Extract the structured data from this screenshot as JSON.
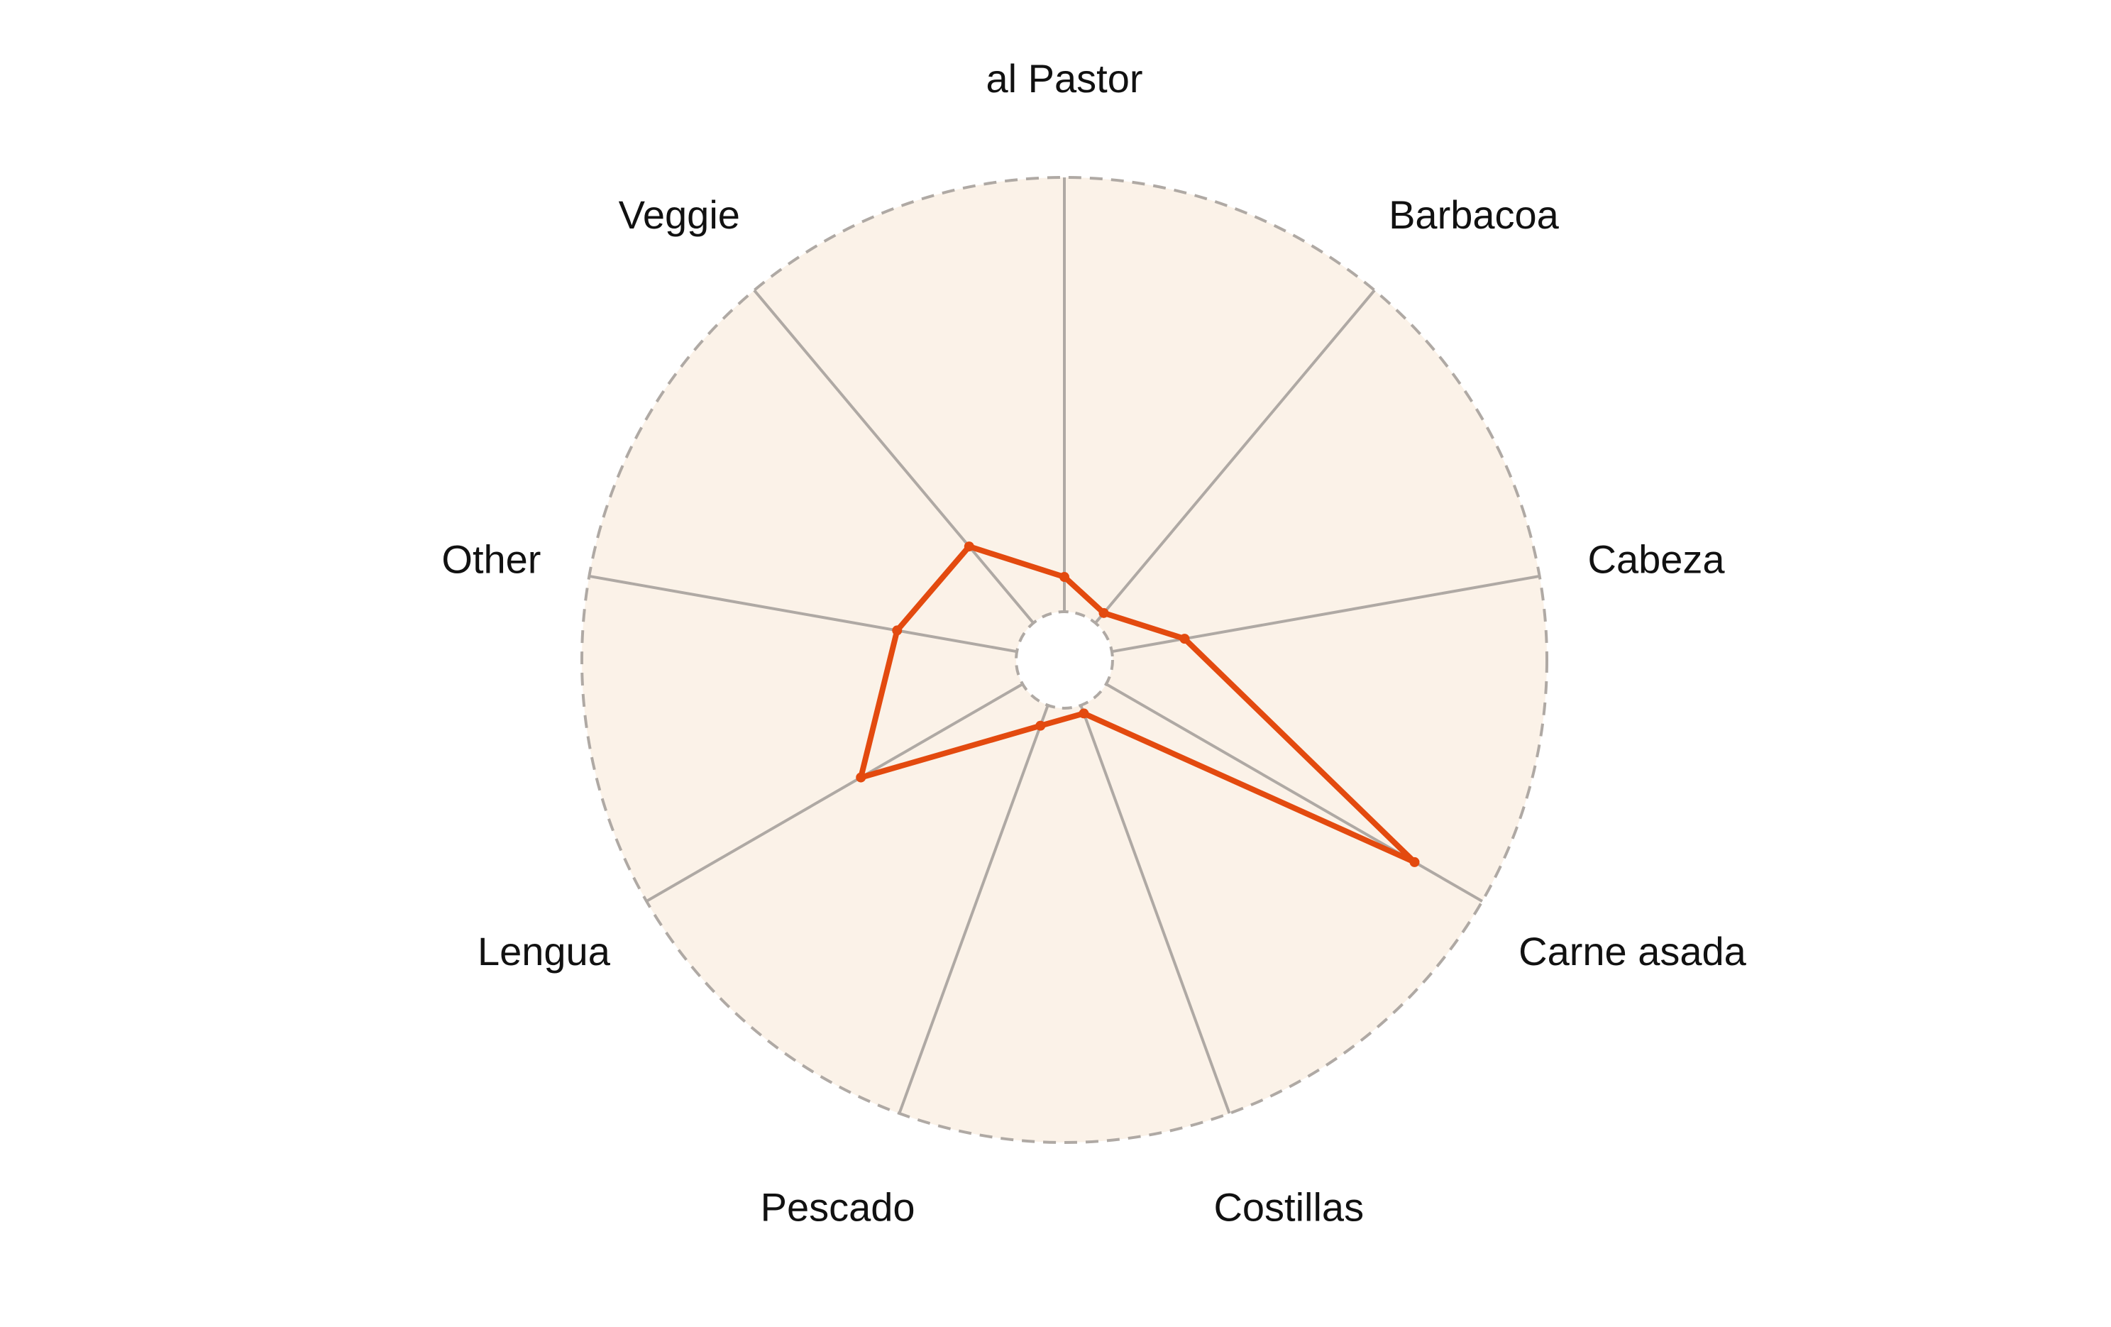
{
  "chart_data": {
    "type": "radar",
    "categories": [
      "al Pastor",
      "Barbacoa",
      "Cabeza",
      "Carne asada",
      "Costillas",
      "Pescado",
      "Lengua",
      "Other",
      "Veggie"
    ],
    "series": [
      {
        "values": [
          0.08,
          0.03,
          0.17,
          0.82,
          0.02,
          0.05,
          0.43,
          0.28,
          0.23
        ]
      }
    ],
    "rlim": [
      0,
      1
    ],
    "grid": true,
    "legend": "none",
    "colors": {
      "series": "#e34a0f",
      "background": "#fbf2e8",
      "grid": "#afa9a4"
    }
  }
}
